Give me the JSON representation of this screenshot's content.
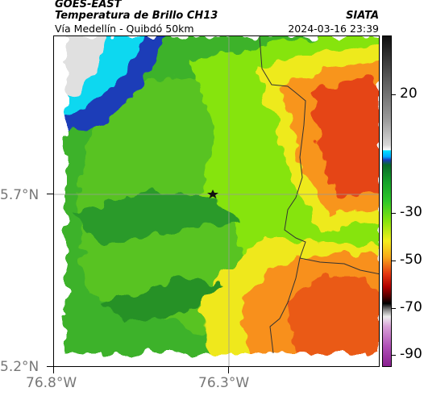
{
  "header": {
    "source": "GOES-EAST",
    "product": "Temperatura de Brillo CH13",
    "region": "Vía Medellín - Quibdó 50km",
    "organization": "SIATA",
    "timestamp": "2024-03-16 23:39"
  },
  "axes": {
    "lat_labels": [
      "5.7°N",
      "5.2°N"
    ],
    "lon_labels": [
      "76.8°W",
      "76.3°W"
    ]
  },
  "colorbar": {
    "labels": [
      "20",
      "-30",
      "-50",
      "-70",
      "-90"
    ],
    "values": [
      20,
      -30,
      -50,
      -70,
      -90
    ],
    "range": [
      -95,
      45
    ]
  },
  "map": {
    "marker": "star-icon",
    "colors": {
      "cold_white": "#e6e6e6",
      "cyan": "#0fd8f0",
      "blue": "#1a3db8",
      "green": "#2ea82a",
      "lime": "#86e40d",
      "yellow": "#f3ee1c",
      "orange": "#f8941a",
      "red": "#e53812",
      "boundary": "#333333",
      "gridline": "#9a9a9a"
    }
  }
}
